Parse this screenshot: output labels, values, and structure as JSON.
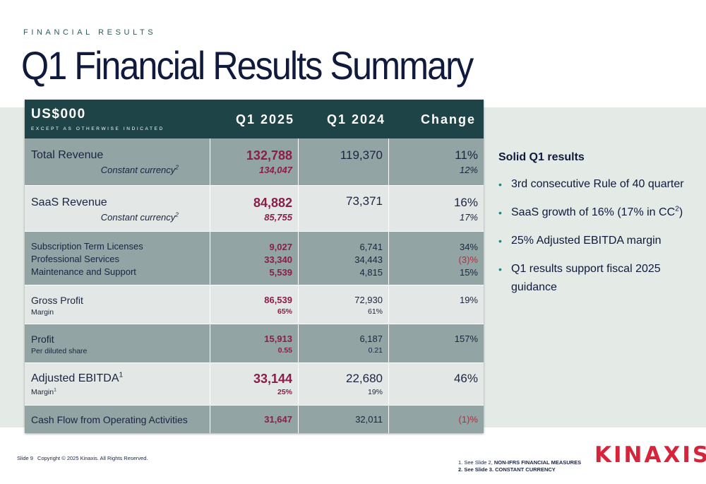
{
  "header": {
    "eyebrow": "FINANCIAL RESULTS",
    "title": "Q1 Financial Results Summary"
  },
  "table": {
    "unit": "US$000",
    "unit_sub": "EXCEPT AS OTHERWISE INDICATED",
    "columns": [
      "Q1 2025",
      "Q1 2024",
      "Change"
    ],
    "rows": {
      "total_revenue": {
        "label": "Total Revenue",
        "sub_label": "Constant currency",
        "sub_sup": "2",
        "q1_2025": "132,788",
        "q1_2025_sub": "134,047",
        "q1_2024": "119,370",
        "change": "11%",
        "change_sub": "12%"
      },
      "saas_revenue": {
        "label": "SaaS Revenue",
        "sub_label": "Constant currency",
        "sub_sup": "2",
        "q1_2025": "84,882",
        "q1_2025_sub": "85,755",
        "q1_2024": "73,371",
        "change": "16%",
        "change_sub": "17%"
      },
      "components": [
        {
          "label": "Subscription Term Licenses",
          "q1_2025": "9,027",
          "q1_2024": "6,741",
          "change": "34%"
        },
        {
          "label": "Professional Services",
          "q1_2025": "33,340",
          "q1_2024": "34,443",
          "change": "(3)%"
        },
        {
          "label": "Maintenance and Support",
          "q1_2025": "5,539",
          "q1_2024": "4,815",
          "change": "15%"
        }
      ],
      "gross_profit": {
        "label": "Gross Profit",
        "sub_label": "Margin",
        "q1_2025": "86,539",
        "q1_2025_sub": "65%",
        "q1_2024": "72,930",
        "q1_2024_sub": "61%",
        "change": "19%"
      },
      "profit": {
        "label": "Profit",
        "sub_label": "Per diluted share",
        "q1_2025": "15,913",
        "q1_2025_sub": "0.55",
        "q1_2024": "6,187",
        "q1_2024_sub": "0.21",
        "change": "157%"
      },
      "adjusted_ebitda": {
        "label": "Adjusted EBITDA",
        "label_sup": "1",
        "sub_label": "Margin",
        "sub_sup": "1",
        "q1_2025": "33,144",
        "q1_2025_sub": "25%",
        "q1_2024": "22,680",
        "q1_2024_sub": "19%",
        "change": "46%"
      },
      "cash_flow": {
        "label": "Cash Flow from Operating Activities",
        "q1_2025": "31,647",
        "q1_2024": "32,011",
        "change": "(1)%"
      }
    }
  },
  "sidebar": {
    "heading": "Solid Q1 results",
    "bullet_glyph": "•",
    "b1": "3rd consecutive Rule of 40 quarter",
    "b2_pre": "SaaS growth of 16% (17% in CC",
    "b2_sup": "2",
    "b2_post": ")",
    "b3": "25% Adjusted EBITDA margin",
    "b4": "Q1 results support fiscal 2025 guidance"
  },
  "footer": {
    "slide": "Slide 9",
    "copyright": "Copyright © 2025 Kinaxis. All Rights Reserved.",
    "note1_pre": "1.   See Slide 2, ",
    "note1_bold": "NON-IFRS FINANCIAL MEASURES",
    "note2": "2.   See Slide 3. CONSTANT CURRENCY",
    "logo": "KINAXIS",
    "logo_mark": "®"
  },
  "colors": {
    "header_bg": "#1e4447",
    "row_dark": "#93a4a5",
    "row_light": "#e3e8e6",
    "accent_value": "#8b1d4a",
    "negative": "#c8253a",
    "brand_red": "#d6243b",
    "band": "#e4ebe7"
  }
}
